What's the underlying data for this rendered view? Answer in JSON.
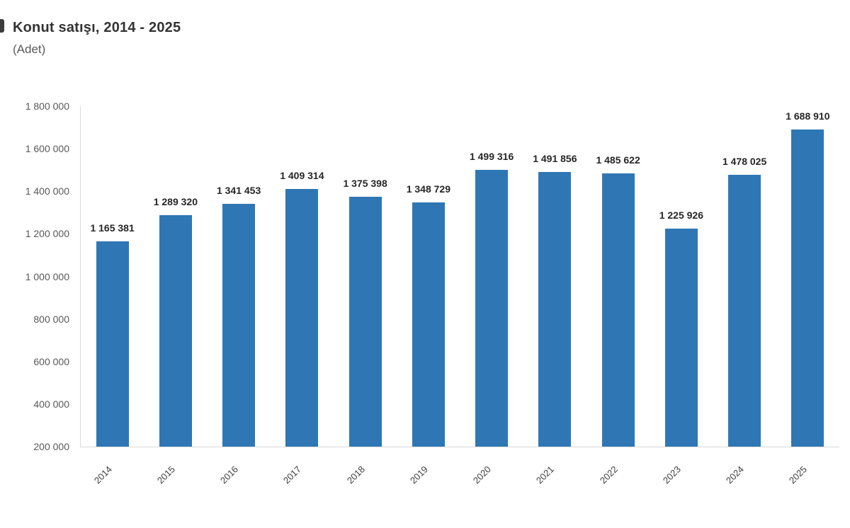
{
  "page": {
    "title": "Konut satışı, 2014 - 2025",
    "subtitle": "(Adet)"
  },
  "chart_data": {
    "type": "bar",
    "title": "Konut satışı, 2014 - 2025",
    "subtitle": "(Adet)",
    "xlabel": "",
    "ylabel": "(Adet)",
    "categories": [
      "2014",
      "2015",
      "2016",
      "2017",
      "2018",
      "2019",
      "2020",
      "2021",
      "2022",
      "2023",
      "2024",
      "2025"
    ],
    "values": [
      1165381,
      1289320,
      1341453,
      1409314,
      1375398,
      1348729,
      1499316,
      1491856,
      1485622,
      1225926,
      1478025,
      1688910
    ],
    "data_labels": [
      "1 165 381",
      "1 289 320",
      "1 341 453",
      "1 409 314",
      "1 375 398",
      "1 348 729",
      "1 499 316",
      "1 491 856",
      "1 485 622",
      "1 225 926",
      "1 478 025",
      "1 688 910"
    ],
    "ylim": [
      200000,
      1800000
    ],
    "ytick_step": 200000,
    "ytick_labels": [
      "200 000",
      "400 000",
      "600 000",
      "800 000",
      "1 000 000",
      "1 200 000",
      "1 400 000",
      "1 600 000",
      "1 800 000"
    ],
    "x_tick_rotation": 45,
    "grid": false,
    "legend": false,
    "bar_color": "#2e77b4"
  },
  "colors": {
    "bar": "#2e77b4",
    "data_label": "#262626",
    "tick_label": "#595959",
    "x_tick_label": "#3f3f3f",
    "axis_line": "#d9d9d9",
    "title": "#333333",
    "subtitle": "#595959",
    "background": "#ffffff"
  }
}
